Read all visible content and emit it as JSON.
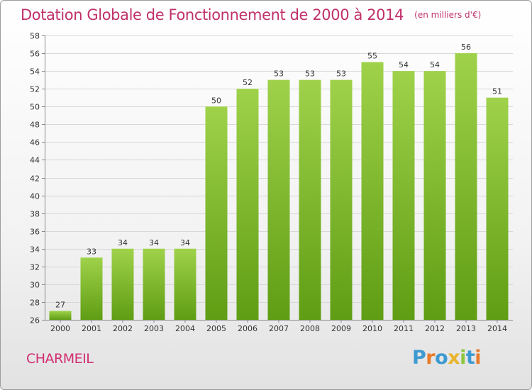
{
  "header": {
    "title": "Dotation Globale de Fonctionnement de 2000 à 2014",
    "subtitle": "(en milliers d'€)"
  },
  "footer": {
    "city": "CHARMEIL"
  },
  "logo": {
    "text": "Proxiti",
    "letters": [
      {
        "char": "P",
        "color": "#3d9ad1"
      },
      {
        "char": "r",
        "color": "#e87a2a"
      },
      {
        "char": "o",
        "color": "#3d9ad1"
      },
      {
        "char": "x",
        "color": "#e8b42a"
      },
      {
        "char": "i",
        "color": "#8cc63f"
      },
      {
        "char": "t",
        "color": "#3d9ad1"
      },
      {
        "char": "i",
        "color": "#e87a2a"
      }
    ]
  },
  "colors": {
    "title": "#c0306a",
    "city": "#d12f72",
    "bar_top": "#9fd24a",
    "bar_bottom": "#5f9d14",
    "grid": "#d8d8d8"
  },
  "chart_data": {
    "type": "bar",
    "title": "Dotation Globale de Fonctionnement de 2000 à 2014",
    "subtitle": "(en milliers d'€)",
    "categories": [
      "2000",
      "2001",
      "2002",
      "2003",
      "2004",
      "2005",
      "2006",
      "2007",
      "2008",
      "2009",
      "2010",
      "2011",
      "2012",
      "2013",
      "2014"
    ],
    "values": [
      27,
      33,
      34,
      34,
      34,
      50,
      52,
      53,
      53,
      53,
      55,
      54,
      54,
      56,
      51
    ],
    "ylim": [
      26,
      58
    ],
    "yticks": [
      26,
      28,
      30,
      32,
      34,
      36,
      38,
      40,
      42,
      44,
      46,
      48,
      50,
      52,
      54,
      56,
      58
    ],
    "xlabel": "",
    "ylabel": "",
    "grid": true,
    "legend": "none"
  }
}
